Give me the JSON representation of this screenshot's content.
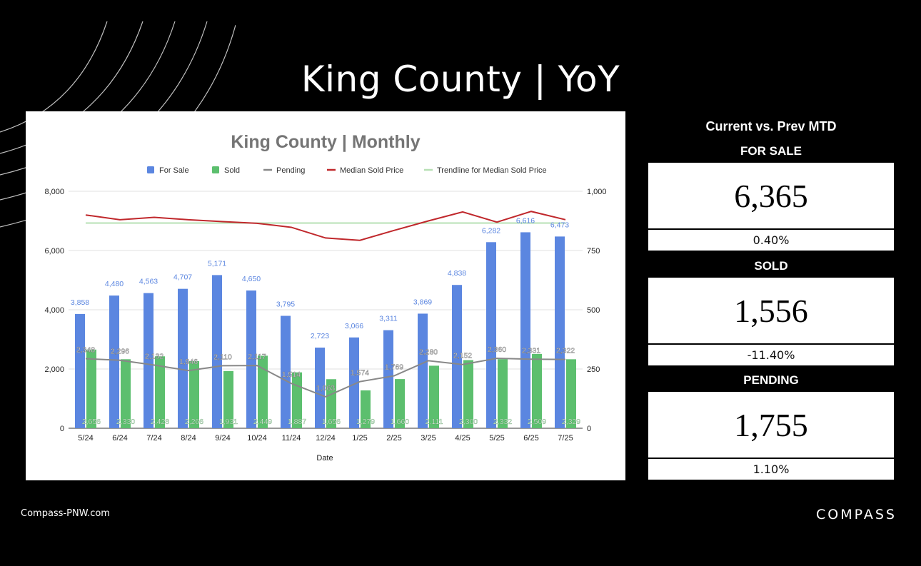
{
  "page": {
    "title": "King County | YoY",
    "footer_site": "Compass-PNW.com",
    "footer_logo": "COMPASS"
  },
  "summary": {
    "heading": "Current vs. Prev MTD",
    "cards": [
      {
        "label": "FOR SALE",
        "value": "6,365",
        "change": "0.40%"
      },
      {
        "label": "SOLD",
        "value": "1,556",
        "change": "-11.40%"
      },
      {
        "label": "PENDING",
        "value": "1,755",
        "change": "1.10%"
      }
    ]
  },
  "colors": {
    "for_sale": "#5b86e0",
    "sold": "#5cbf6e",
    "pending": "#888888",
    "median": "#c0282c",
    "trendline": "#b7e0b4"
  },
  "chart_data": {
    "type": "bar",
    "title": "King County | Monthly",
    "xlabel": "Date",
    "ylabel": "",
    "ylim": [
      0,
      8000
    ],
    "y_ticks": [
      "0",
      "2,000",
      "4,000",
      "6,000",
      "8,000"
    ],
    "y2lim": [
      0,
      1000
    ],
    "y2_ticks": [
      "0",
      "250",
      "500",
      "750",
      "1,000"
    ],
    "legend_position": "top",
    "grid": true,
    "categories": [
      "5/24",
      "6/24",
      "7/24",
      "8/24",
      "9/24",
      "10/24",
      "11/24",
      "12/24",
      "1/25",
      "2/25",
      "3/25",
      "4/25",
      "5/25",
      "6/25",
      "7/25"
    ],
    "series": [
      {
        "name": "For Sale",
        "kind": "bar",
        "values": [
          3858,
          4480,
          4563,
          4707,
          5171,
          4650,
          3795,
          2723,
          3066,
          3311,
          3869,
          4838,
          6282,
          6616,
          6473
        ]
      },
      {
        "name": "Sold",
        "kind": "bar",
        "values": [
          2656,
          2330,
          2428,
          2266,
          1931,
          2449,
          1887,
          1656,
          1279,
          1660,
          2111,
          2300,
          2332,
          2509,
          2329
        ]
      },
      {
        "name": "Pending",
        "kind": "line",
        "values": [
          2348,
          2296,
          2132,
          1946,
          2110,
          2117,
          1514,
          1063,
          1574,
          1769,
          2280,
          2152,
          2360,
          2331,
          2322
        ]
      },
      {
        "name": "Median Sold Price",
        "kind": "line",
        "axis": "right",
        "values": [
          900,
          880,
          890,
          880,
          872,
          865,
          848,
          803,
          793,
          835,
          875,
          913,
          870,
          915,
          880
        ]
      },
      {
        "name": "Trendline for Median Sold Price",
        "kind": "line",
        "axis": "right",
        "values": [
          866,
          866,
          866,
          866,
          866,
          866,
          866,
          866,
          866,
          866,
          866,
          866,
          866,
          866,
          866
        ]
      }
    ]
  }
}
